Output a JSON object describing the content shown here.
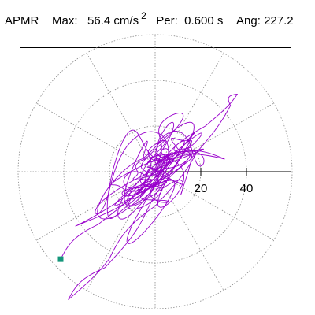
{
  "header": {
    "station": "APMR",
    "max_label": "Max:",
    "max_value": "56.4 cm/s",
    "max_exp": "2",
    "per_label": "Per:",
    "per_value": "0.600 s",
    "ang_label": "Ang:",
    "ang_value": "227.2"
  },
  "colors": {
    "trace": "#9900cc",
    "marker": "#14967a",
    "grid": "#888888",
    "axis": "#000000"
  },
  "chart_data": {
    "type": "scatter",
    "subtype": "particle-motion orbit (polar)",
    "units": "cm/s^2",
    "radial_ticks": [
      20,
      40
    ],
    "grid_rings": [
      20,
      40,
      60
    ],
    "spoke_angles_deg": [
      0,
      30,
      60,
      90,
      120,
      150,
      180,
      210,
      240,
      270,
      300,
      330
    ],
    "max_amplitude": 56.4,
    "period_s": 0.6,
    "angle_deg": 227.2,
    "end_point": {
      "angle_deg": 227.2,
      "radius": 56.4
    },
    "trace": {
      "amplitudes": [
        14,
        22,
        10,
        18,
        9,
        13,
        4,
        8,
        5,
        6,
        7,
        3,
        2,
        1,
        1
      ],
      "long_axis_samples": [
        [
          0,
          0
        ],
        [
          22,
          20
        ],
        [
          36,
          34
        ],
        [
          33,
          29
        ],
        [
          15,
          5
        ],
        [
          -5,
          -20
        ],
        [
          -22,
          -42
        ],
        [
          -38,
          -56
        ],
        [
          -20,
          -38
        ],
        [
          0,
          -15
        ],
        [
          18,
          8
        ],
        [
          5,
          2
        ]
      ],
      "axis_angle_deg": 41,
      "seed": 7
    }
  }
}
